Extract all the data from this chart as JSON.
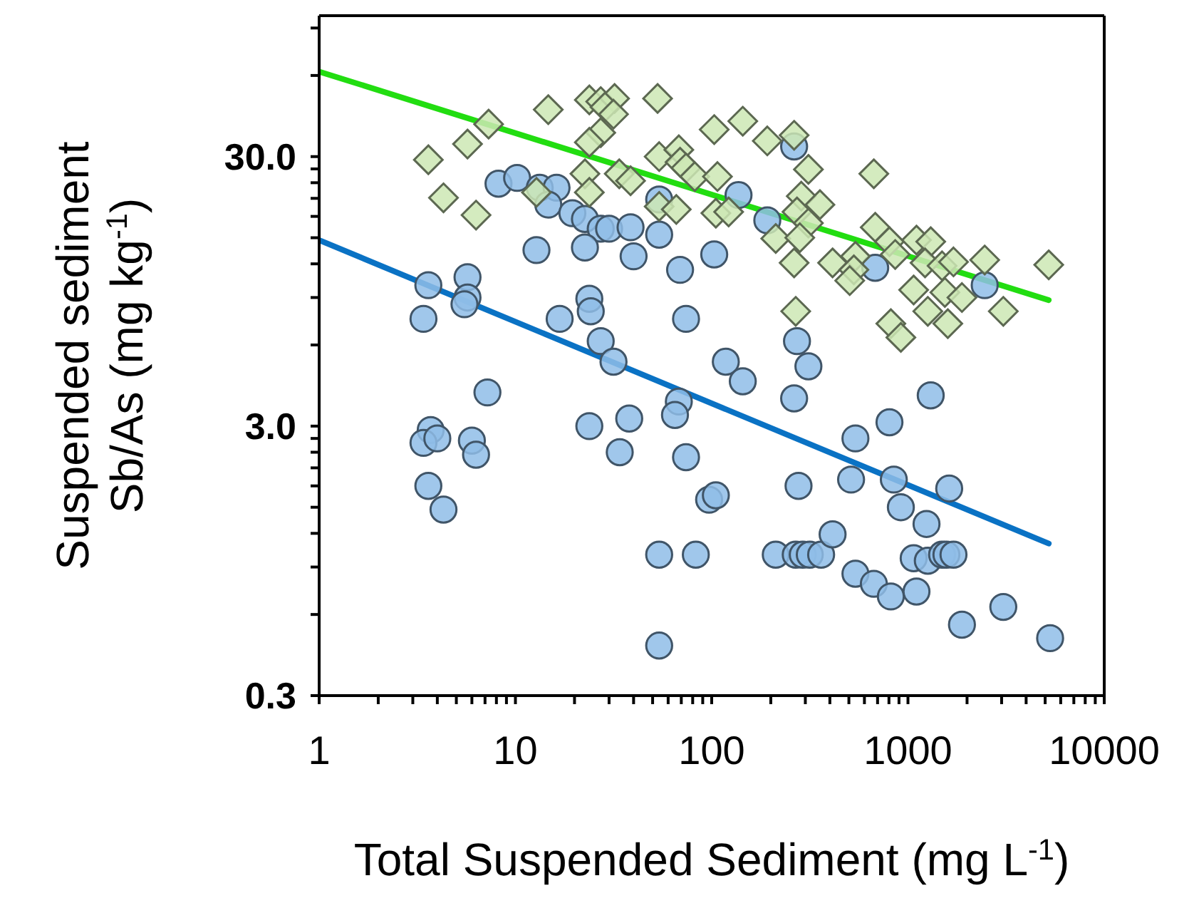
{
  "chart_data": {
    "type": "scatter",
    "xlabel": "Total Suspended Sediment (mg L$^{-1}$)",
    "ylabel": "Suspended sediment\nSb/As (mg kg$^{-1}$)",
    "log": "xy",
    "xlim": [
      1,
      10000
    ],
    "xticks": [
      1,
      {
        "value": 2,
        "label": null
      },
      {
        "value": 3,
        "label": null
      },
      {
        "value": 4,
        "label": null
      },
      {
        "value": 5,
        "label": null
      },
      {
        "value": 6,
        "label": null
      },
      {
        "value": 7,
        "label": null
      },
      {
        "value": 8,
        "label": null
      },
      {
        "value": 9,
        "label": null
      },
      10,
      {
        "value": 20,
        "label": null
      },
      {
        "value": 30,
        "label": null
      },
      {
        "value": 40,
        "label": null
      },
      {
        "value": 50,
        "label": null
      },
      {
        "value": 60,
        "label": null
      },
      {
        "value": 70,
        "label": null
      },
      {
        "value": 80,
        "label": null
      },
      {
        "value": 90,
        "label": null
      },
      100,
      {
        "value": 200,
        "label": null
      },
      {
        "value": 300,
        "label": null
      },
      {
        "value": 400,
        "label": null
      },
      {
        "value": 500,
        "label": null
      },
      {
        "value": 600,
        "label": null
      },
      {
        "value": 700,
        "label": null
      },
      {
        "value": 800,
        "label": null
      },
      {
        "value": 900,
        "label": null
      },
      1000,
      {
        "value": 2000,
        "label": null
      },
      {
        "value": 3000,
        "label": null
      },
      {
        "value": 4000,
        "label": null
      },
      {
        "value": 5000,
        "label": null
      },
      {
        "value": 6000,
        "label": null
      },
      {
        "value": 7000,
        "label": null
      },
      {
        "value": 8000,
        "label": null
      },
      {
        "value": 9000,
        "label": null
      },
      10000
    ],
    "ylim": [
      0.3,
      100
    ],
    "yticks": [
      0.3,
      {
        "value": 0.6,
        "label": null
      },
      {
        "value": 0.9,
        "label": null
      },
      {
        "value": 1.2,
        "label": null
      },
      {
        "value": 1.5,
        "label": null
      },
      {
        "value": 1.8,
        "label": null
      },
      {
        "value": 2.1,
        "label": null
      },
      {
        "value": 2.4,
        "label": null
      },
      {
        "value": 2.7,
        "label": null
      },
      {
        "value": 3,
        "label": "3.0"
      },
      {
        "value": 6,
        "label": null
      },
      {
        "value": 9,
        "label": null
      },
      {
        "value": 12,
        "label": null
      },
      {
        "value": 15,
        "label": null
      },
      {
        "value": 18,
        "label": null
      },
      {
        "value": 21,
        "label": null
      },
      {
        "value": 24,
        "label": null
      },
      {
        "value": 27,
        "label": null
      },
      {
        "value": 30,
        "label": "30.0"
      },
      {
        "value": 60,
        "label": null
      },
      {
        "value": 90,
        "label": null
      }
    ],
    "series": [
      {
        "marker": "circle",
        "color": "#8fbde8",
        "x": [
          8.2,
          10.2,
          13.3,
          16.2,
          14.7,
          19.5,
          22.6,
          27.2,
          30,
          38.6,
          54,
          54,
          12.8,
          22.6,
          40,
          69,
          3.6,
          5.7,
          5.7,
          5.5,
          3.4,
          16.8,
          23.8,
          24.2,
          74,
          27.2,
          31.6,
          263,
          137,
          192,
          103,
          681,
          2460,
          272,
          311,
          118,
          7.2,
          3.7,
          3.4,
          4.0,
          6.0,
          6.3,
          3.6,
          4.3,
          23.8,
          38,
          34,
          68,
          65,
          74,
          54,
          83,
          54,
          97,
          144,
          263,
          1306,
          805,
          540,
          277,
          513,
          847,
          1622,
          920,
          1243,
          105,
          212,
          268,
          291,
          316,
          361,
          413,
          540,
          670,
          818,
          1105,
          1069,
          1262,
          1492,
          1570,
          1706,
          1884,
          3060,
          5300
        ],
        "values": [
          23.8,
          25,
          23,
          23,
          19.9,
          18.5,
          17.6,
          16.2,
          16.2,
          16.4,
          20.8,
          15.4,
          13.5,
          13.8,
          12.8,
          11.4,
          10,
          10.7,
          9.0,
          8.5,
          7.5,
          7.5,
          8.9,
          8.0,
          7.5,
          6.2,
          5.2,
          32.7,
          21.6,
          17.4,
          13,
          11.6,
          10,
          6.2,
          5.0,
          5.2,
          4.0,
          2.9,
          2.6,
          2.7,
          2.65,
          2.35,
          1.8,
          1.47,
          3.0,
          3.2,
          2.4,
          3.7,
          3.3,
          2.3,
          1.0,
          1.0,
          0.46,
          1.6,
          4.4,
          3.8,
          3.9,
          3.1,
          2.7,
          1.8,
          1.9,
          1.9,
          1.76,
          1.5,
          1.3,
          1.66,
          1.0,
          1.0,
          1.0,
          1.0,
          1.0,
          1.19,
          0.85,
          0.78,
          0.7,
          0.73,
          0.97,
          0.95,
          1.0,
          1.0,
          1.0,
          0.55,
          0.64,
          0.49
        ]
      },
      {
        "marker": "diamond",
        "color": "#cce8b4",
        "x": [
          14.7,
          23.8,
          27.2,
          32,
          28.6,
          31.6,
          53,
          7.3,
          5.7,
          3.6,
          27.2,
          23.8,
          4.3,
          6.3,
          22.6,
          23.8,
          33.8,
          38.6,
          54,
          68,
          69,
          74,
          82,
          12.8,
          54,
          66,
          103,
          144,
          192,
          263,
          311,
          107,
          670,
          105,
          122,
          286,
          356,
          272,
          311,
          212,
          281,
          263,
          413,
          540,
          530,
          505,
          681,
          805,
          861,
          1105,
          1306,
          1222,
          1492,
          1706,
          2460,
          5215,
          1069,
          1542,
          1884,
          1262,
          1596,
          3060,
          268,
          818,
          920
        ],
        "values": [
          44.8,
          48.7,
          48,
          49.3,
          45.8,
          43.1,
          49.3,
          39.6,
          33.4,
          29.2,
          36.8,
          33.9,
          21.1,
          18.2,
          25.9,
          22.1,
          25.9,
          24.4,
          30,
          31.8,
          28.6,
          27.2,
          25.3,
          22.1,
          19.6,
          19.1,
          37.8,
          40.6,
          34.3,
          36,
          26.9,
          25.3,
          25.9,
          18.5,
          18.7,
          21.4,
          19.9,
          18.7,
          17,
          14.9,
          15,
          12.1,
          12.1,
          12.8,
          11.4,
          10.4,
          16.4,
          14.5,
          13,
          14.7,
          14.5,
          12.1,
          11.8,
          12.2,
          12.4,
          11.9,
          9.6,
          9.4,
          9.0,
          8.0,
          7.2,
          8.0,
          8.0,
          7.2,
          6.4
        ]
      },
      {
        "type": "line",
        "marker": "none",
        "color": "#0a72c4",
        "x": [
          1,
          5215
        ],
        "values": [
          14.7,
          1.1
        ]
      },
      {
        "type": "line",
        "marker": "none",
        "color": "#22dd11",
        "x": [
          1,
          5215
        ],
        "values": [
          62,
          8.8
        ]
      }
    ]
  }
}
